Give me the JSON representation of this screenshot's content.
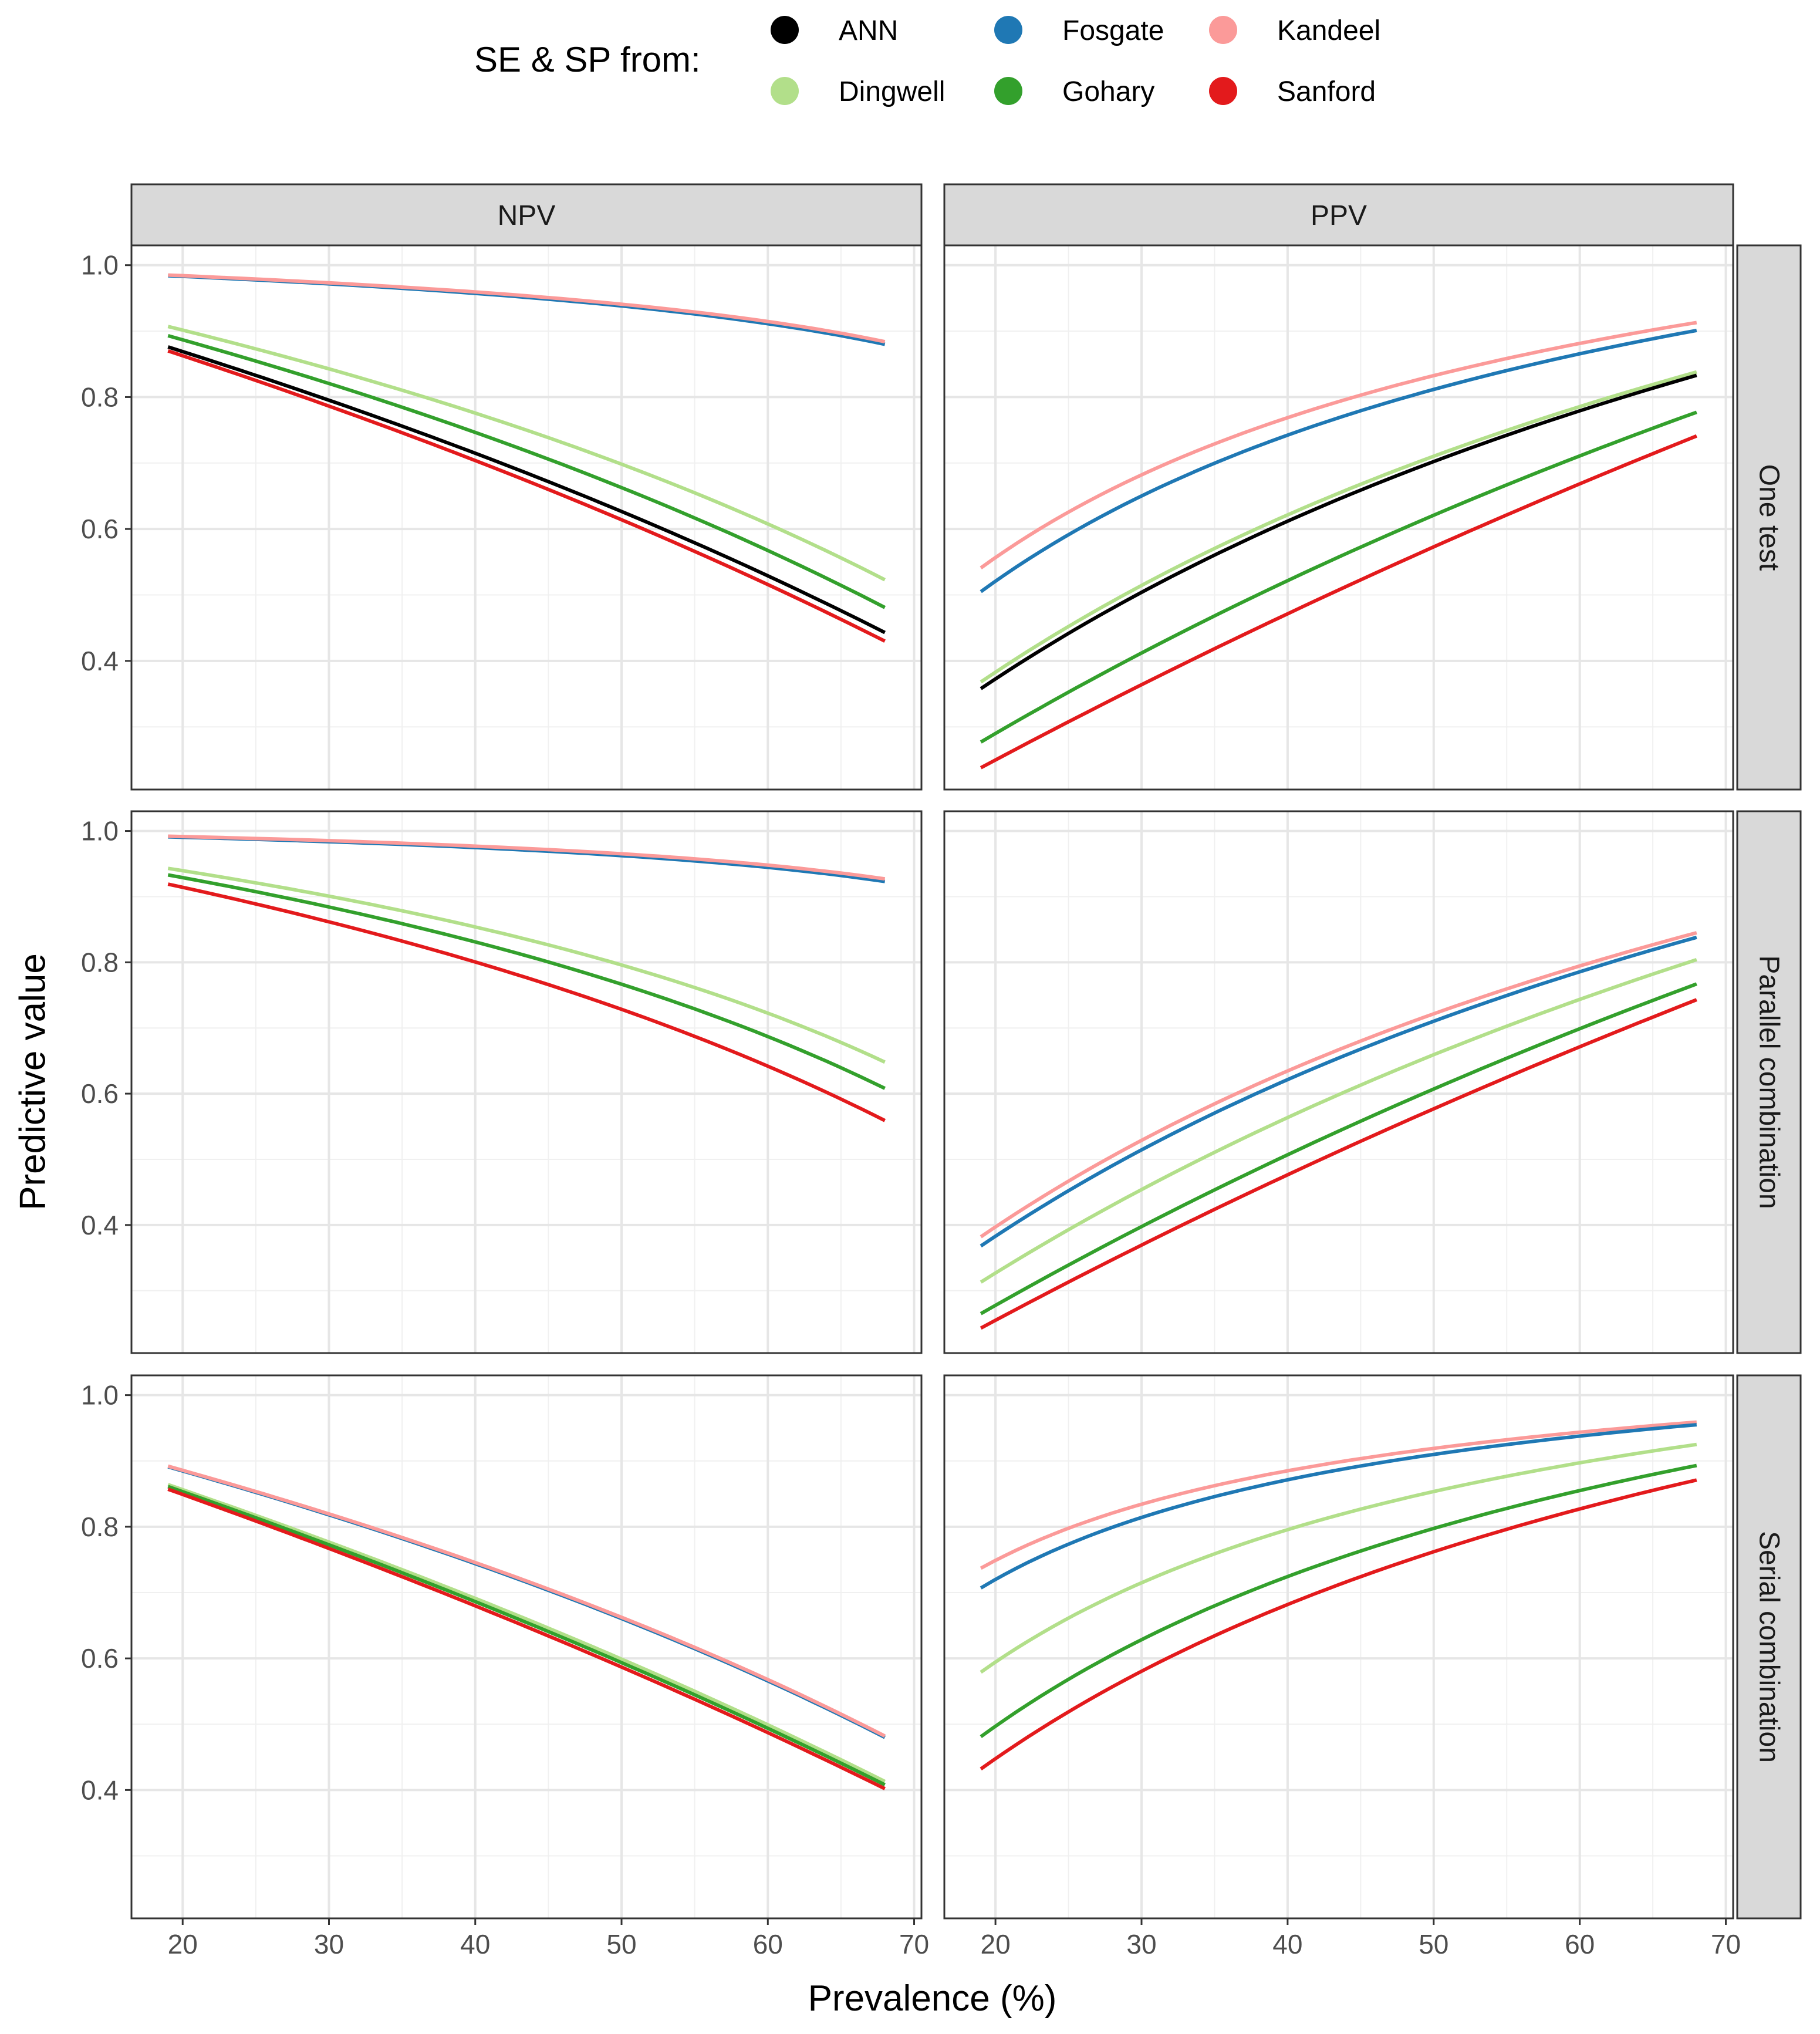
{
  "chart_data": {
    "type": "line",
    "xlabel": "Prevalence (%)",
    "ylabel": "Predictive value",
    "xlim": [
      16.5,
      70.5
    ],
    "ylim": [
      0.205,
      1.03
    ],
    "x_ticks": [
      20,
      30,
      40,
      50,
      60,
      70
    ],
    "y_ticks": [
      0.4,
      0.6,
      0.8,
      1.0
    ],
    "grid": true,
    "legend": {
      "title": "SE & SP from:",
      "position": "top",
      "entries": [
        {
          "name": "ANN",
          "color": "#000000"
        },
        {
          "name": "Dingwell",
          "color": "#b2df8a"
        },
        {
          "name": "Fosgate",
          "color": "#1f78b4"
        },
        {
          "name": "Gohary",
          "color": "#33a02c"
        },
        {
          "name": "Kandeel",
          "color": "#fb9a99"
        },
        {
          "name": "Sanford",
          "color": "#e31a1c"
        }
      ]
    },
    "columns": [
      "NPV",
      "PPV"
    ],
    "rows": [
      "One test",
      "Parallel combination",
      "Serial combination"
    ],
    "x": [
      19,
      68
    ],
    "panels": [
      {
        "row": "One test",
        "column": "NPV",
        "series": [
          {
            "name": "Fosgate",
            "values": [
              0.984,
              0.88
            ]
          },
          {
            "name": "Kandeel",
            "values": [
              0.985,
              0.884
            ]
          },
          {
            "name": "Dingwell",
            "values": [
              0.907,
              0.523
            ]
          },
          {
            "name": "Gohary",
            "values": [
              0.893,
              0.481
            ]
          },
          {
            "name": "Sanford",
            "values": [
              0.87,
              0.43
            ]
          },
          {
            "name": "ANN",
            "values": [
              0.876,
              0.443
            ]
          }
        ]
      },
      {
        "row": "One test",
        "column": "PPV",
        "series": [
          {
            "name": "Kandeel",
            "values": [
              0.541,
              0.913
            ]
          },
          {
            "name": "Fosgate",
            "values": [
              0.505,
              0.901
            ]
          },
          {
            "name": "Dingwell",
            "values": [
              0.368,
              0.838
            ]
          },
          {
            "name": "ANN",
            "values": [
              0.358,
              0.833
            ]
          },
          {
            "name": "Gohary",
            "values": [
              0.277,
              0.777
            ]
          },
          {
            "name": "Sanford",
            "values": [
              0.238,
              0.741
            ]
          }
        ]
      },
      {
        "row": "Parallel combination",
        "column": "NPV",
        "series": [
          {
            "name": "Fosgate",
            "values": [
              0.991,
              0.923
            ]
          },
          {
            "name": "Kandeel",
            "values": [
              0.992,
              0.927
            ]
          },
          {
            "name": "Dingwell",
            "values": [
              0.943,
              0.648
            ]
          },
          {
            "name": "Gohary",
            "values": [
              0.933,
              0.608
            ]
          },
          {
            "name": "Sanford",
            "values": [
              0.919,
              0.559
            ]
          }
        ]
      },
      {
        "row": "Parallel combination",
        "column": "PPV",
        "series": [
          {
            "name": "Kandeel",
            "values": [
              0.382,
              0.845
            ]
          },
          {
            "name": "Fosgate",
            "values": [
              0.368,
              0.838
            ]
          },
          {
            "name": "Dingwell",
            "values": [
              0.313,
              0.804
            ]
          },
          {
            "name": "Gohary",
            "values": [
              0.265,
              0.767
            ]
          },
          {
            "name": "Sanford",
            "values": [
              0.243,
              0.743
            ]
          }
        ]
      },
      {
        "row": "Serial combination",
        "column": "NPV",
        "series": [
          {
            "name": "Fosgate",
            "values": [
              0.891,
              0.48
            ]
          },
          {
            "name": "Kandeel",
            "values": [
              0.892,
              0.482
            ]
          },
          {
            "name": "Dingwell",
            "values": [
              0.864,
              0.413
            ]
          },
          {
            "name": "Gohary",
            "values": [
              0.861,
              0.408
            ]
          },
          {
            "name": "Sanford",
            "values": [
              0.857,
              0.402
            ]
          }
        ]
      },
      {
        "row": "Serial combination",
        "column": "PPV",
        "series": [
          {
            "name": "Kandeel",
            "values": [
              0.737,
              0.959
            ]
          },
          {
            "name": "Fosgate",
            "values": [
              0.707,
              0.955
            ]
          },
          {
            "name": "Dingwell",
            "values": [
              0.579,
              0.925
            ]
          },
          {
            "name": "Gohary",
            "values": [
              0.481,
              0.893
            ]
          },
          {
            "name": "Sanford",
            "values": [
              0.432,
              0.871
            ]
          }
        ]
      }
    ]
  }
}
